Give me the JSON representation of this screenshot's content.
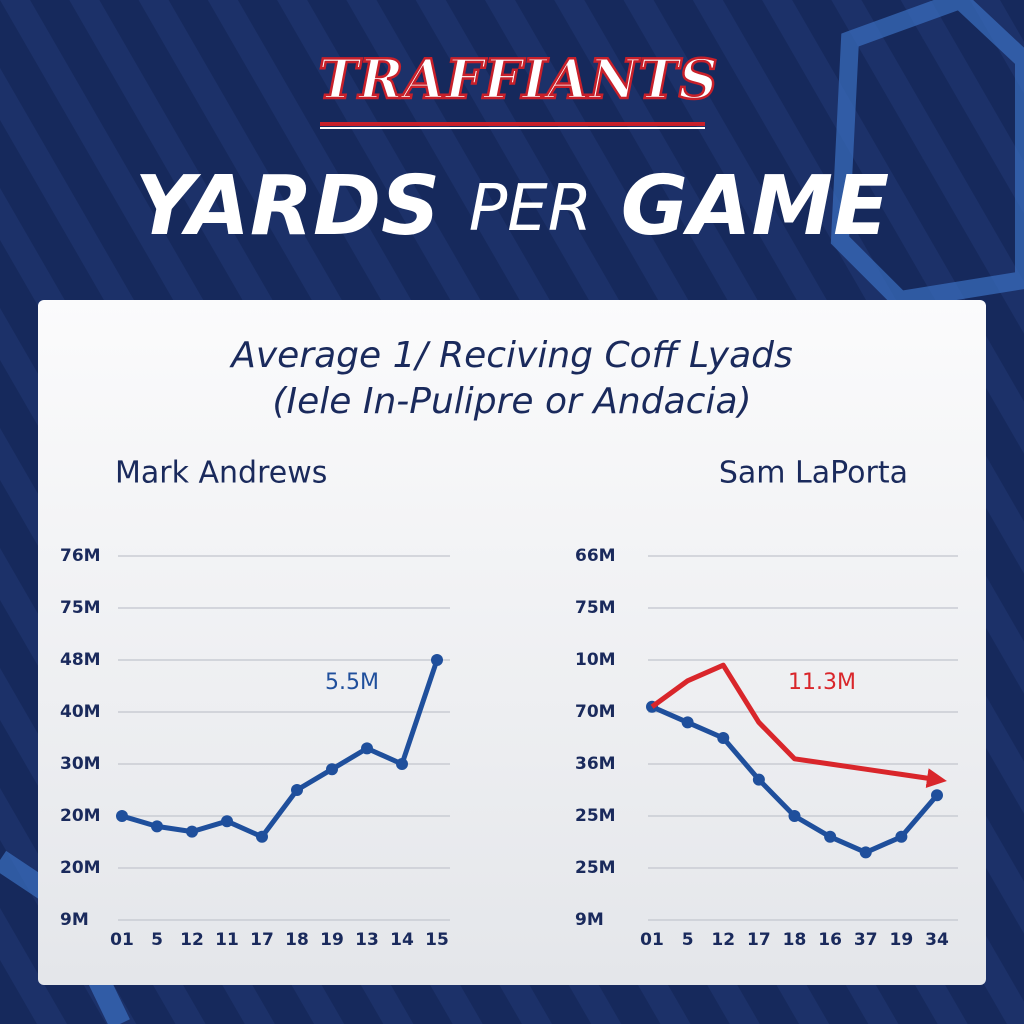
{
  "header": {
    "logo": "TRAFFIANTS",
    "title": [
      "YARDS",
      "PER",
      "GAME"
    ]
  },
  "panel": {
    "subtitle": [
      "Average 1/ Reciving Coff Lyads",
      "(Iele In-Pulipre or Andacia)"
    ]
  },
  "chart_data": [
    {
      "type": "line",
      "title": "Mark Andrews",
      "categories": [
        "01",
        "5",
        "12",
        "11",
        "17",
        "18",
        "19",
        "13",
        "14",
        "15"
      ],
      "series": [
        {
          "color": "#1f4f9c",
          "markers": true,
          "values": [
            2.0,
            1.8,
            1.7,
            1.9,
            1.6,
            2.5,
            2.9,
            3.3,
            3.0,
            5.0
          ]
        }
      ],
      "ylim": [
        0,
        7
      ],
      "yticks": [
        {
          "value": 0,
          "label": "9M"
        },
        {
          "value": 1,
          "label": "20M"
        },
        {
          "value": 2,
          "label": "20M"
        },
        {
          "value": 3,
          "label": "30M"
        },
        {
          "value": 4,
          "label": "40M"
        },
        {
          "value": 5,
          "label": "48M"
        },
        {
          "value": 6,
          "label": "75M"
        },
        {
          "value": 7,
          "label": "76M"
        }
      ],
      "grid": true,
      "annotation": "5.5M",
      "annotation_color": "#1f4f9c"
    },
    {
      "type": "line",
      "title": "Sam LaPorta",
      "categories": [
        "01",
        "5",
        "12",
        "17",
        "18",
        "16",
        "37",
        "19",
        "34"
      ],
      "series": [
        {
          "color": "#1f4f9c",
          "markers": true,
          "values": [
            4.1,
            3.8,
            3.5,
            2.7,
            2.0,
            1.6,
            1.3,
            1.6,
            2.4
          ]
        },
        {
          "color": "#d9262b",
          "markers": false,
          "arrow": true,
          "values": [
            4.1,
            4.6,
            4.9,
            3.8,
            3.1,
            3.0,
            2.9,
            2.8,
            2.7
          ]
        }
      ],
      "ylim": [
        0,
        7
      ],
      "yticks": [
        {
          "value": 0,
          "label": "9M"
        },
        {
          "value": 1,
          "label": "25M"
        },
        {
          "value": 2,
          "label": "25M"
        },
        {
          "value": 3,
          "label": "36M"
        },
        {
          "value": 4,
          "label": "70M"
        },
        {
          "value": 5,
          "label": "10M"
        },
        {
          "value": 6,
          "label": "75M"
        },
        {
          "value": 7,
          "label": "66M"
        }
      ],
      "grid": true,
      "annotation": "11.3M",
      "annotation_color": "#d9262b"
    }
  ]
}
